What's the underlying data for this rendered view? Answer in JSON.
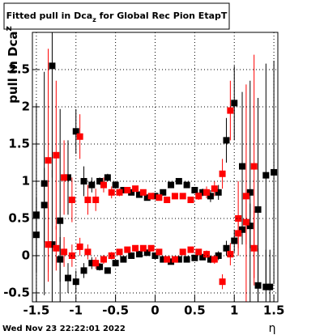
{
  "chart_data": {
    "type": "scatter",
    "title": [
      "Fitted pull in Dca",
      "z",
      " for Global Rec Pion EtapT"
    ],
    "y_label": [
      "pull in Dca",
      "z"
    ],
    "x_label": "η",
    "timestamp": "Wed Nov 23 22:22:01 2022",
    "xlim": [
      -1.55,
      1.55
    ],
    "ylim": [
      -0.62,
      3.0
    ],
    "xticks": [
      -1.5,
      -1,
      -0.5,
      0,
      0.5,
      1,
      1.5
    ],
    "yticks": [
      -0.5,
      0,
      0.5,
      1,
      1.5,
      2,
      2.5
    ],
    "grid": true,
    "series": [
      {
        "color": "#000000",
        "x": [
          -1.5,
          -1.4,
          -1.3,
          -1.2,
          -1.1,
          -1.0,
          -0.9,
          -0.8,
          -0.7,
          -0.6,
          -0.5,
          -0.4,
          -0.3,
          -0.2,
          -0.1,
          0,
          0.1,
          0.2,
          0.3,
          0.4,
          0.5,
          0.6,
          0.7,
          0.8,
          0.9,
          1.0,
          1.1,
          1.2,
          1.3,
          1.4,
          1.5
        ],
        "values": [
          0.55,
          0.97,
          2.55,
          0.47,
          1.05,
          1.67,
          1.0,
          0.95,
          1.0,
          1.05,
          0.95,
          0.88,
          0.85,
          0.82,
          0.78,
          0.8,
          0.85,
          0.95,
          1.0,
          0.95,
          0.88,
          0.85,
          0.8,
          0.85,
          1.55,
          2.05,
          1.2,
          0.85,
          0.62,
          1.08,
          1.12
        ],
        "errors": [
          1.5,
          1.5,
          1.5,
          1.5,
          0.5,
          0.3,
          0.2,
          0.1,
          0.05,
          0.05,
          0.04,
          0.03,
          0.03,
          0.03,
          0.03,
          0.03,
          0.03,
          0.03,
          0.03,
          0.03,
          0.04,
          0.05,
          0.08,
          0.1,
          0.3,
          0.5,
          1.0,
          1.5,
          1.5,
          1.5,
          1.5
        ]
      },
      {
        "color": "#000000",
        "x": [
          -1.5,
          -1.4,
          -1.3,
          -1.2,
          -1.1,
          -1.0,
          -0.9,
          -0.8,
          -0.7,
          -0.6,
          -0.5,
          -0.4,
          -0.3,
          -0.2,
          -0.1,
          0,
          0.1,
          0.2,
          0.3,
          0.4,
          0.5,
          0.6,
          0.7,
          0.8,
          0.9,
          1.0,
          1.1,
          1.2,
          1.3,
          1.4,
          1.45
        ],
        "values": [
          0.28,
          0.68,
          0.15,
          -0.05,
          -0.3,
          -0.35,
          -0.2,
          -0.1,
          -0.15,
          -0.2,
          -0.1,
          -0.05,
          0.0,
          0.02,
          0.04,
          0.0,
          -0.05,
          -0.08,
          -0.05,
          -0.05,
          -0.03,
          -0.02,
          -0.05,
          0.0,
          0.1,
          0.2,
          0.35,
          0.4,
          -0.4,
          -0.42,
          -0.42
        ],
        "errors": [
          0.5,
          0.5,
          1.0,
          0.3,
          0.2,
          0.15,
          0.1,
          0.08,
          0.05,
          0.04,
          0.03,
          0.03,
          0.03,
          0.03,
          0.03,
          0.03,
          0.03,
          0.03,
          0.03,
          0.03,
          0.03,
          0.04,
          0.05,
          0.06,
          0.1,
          0.15,
          0.2,
          0.3,
          0.5,
          0.5,
          0.5
        ]
      },
      {
        "color": "#ff0000",
        "x": [
          -1.35,
          -1.25,
          -1.15,
          -1.05,
          -0.95,
          -0.85,
          -0.75,
          -0.65,
          -0.55,
          -0.45,
          -0.35,
          -0.25,
          -0.15,
          -0.05,
          0.05,
          0.15,
          0.25,
          0.35,
          0.45,
          0.55,
          0.65,
          0.75,
          0.85,
          0.95,
          1.05,
          1.15,
          1.25
        ],
        "values": [
          1.28,
          1.35,
          1.05,
          0.75,
          1.6,
          0.75,
          0.75,
          0.95,
          0.85,
          0.85,
          0.88,
          0.9,
          0.85,
          0.8,
          0.78,
          0.75,
          0.8,
          0.8,
          0.75,
          0.8,
          0.85,
          0.9,
          1.1,
          1.95,
          0.5,
          0.8,
          1.2
        ],
        "errors": [
          1.5,
          1.0,
          0.5,
          0.3,
          0.3,
          0.2,
          0.15,
          0.1,
          0.08,
          0.05,
          0.04,
          0.03,
          0.03,
          0.03,
          0.03,
          0.03,
          0.03,
          0.03,
          0.04,
          0.05,
          0.08,
          0.1,
          0.2,
          0.4,
          0.5,
          1.5,
          1.5
        ]
      },
      {
        "color": "#ff0000",
        "x": [
          -1.35,
          -1.25,
          -1.15,
          -1.05,
          -0.95,
          -0.85,
          -0.75,
          -0.65,
          -0.55,
          -0.45,
          -0.35,
          -0.25,
          -0.15,
          -0.05,
          0.05,
          0.15,
          0.25,
          0.35,
          0.45,
          0.55,
          0.65,
          0.75,
          0.85,
          0.95,
          1.05,
          1.15,
          1.25
        ],
        "values": [
          0.15,
          0.1,
          0.05,
          0.0,
          0.12,
          0.05,
          -0.1,
          -0.05,
          0.0,
          0.05,
          0.08,
          0.1,
          0.1,
          0.1,
          0.05,
          -0.05,
          -0.05,
          0.05,
          0.08,
          0.05,
          0.02,
          -0.05,
          -0.35,
          0.02,
          0.3,
          0.45,
          0.1
        ],
        "errors": [
          0.5,
          0.3,
          0.2,
          0.15,
          0.12,
          0.1,
          0.08,
          0.06,
          0.05,
          0.04,
          0.03,
          0.03,
          0.03,
          0.03,
          0.03,
          0.03,
          0.03,
          0.03,
          0.03,
          0.04,
          0.05,
          0.06,
          0.1,
          0.15,
          0.2,
          0.3,
          0.5
        ]
      }
    ]
  }
}
